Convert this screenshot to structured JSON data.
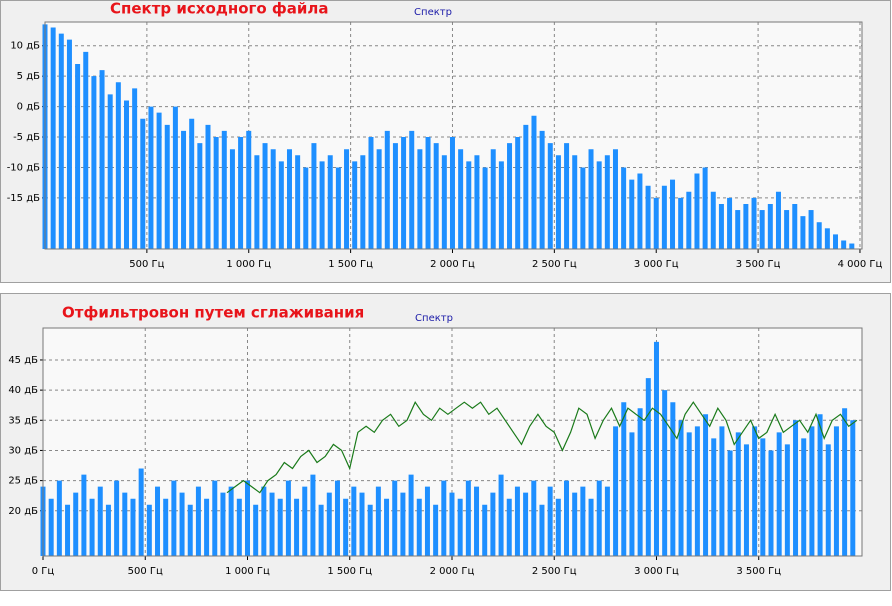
{
  "chart_data": [
    {
      "type": "bar",
      "title": "Спектр исходного файла",
      "grid": true,
      "xlim": [
        0,
        4010
      ],
      "ylim": [
        -23.4,
        13.9
      ],
      "xticks": [
        {
          "value": 500,
          "label": "500 Гц"
        },
        {
          "value": 1000,
          "label": "1 000 Гц"
        },
        {
          "value": 1500,
          "label": "1 500 Гц"
        },
        {
          "value": 2000,
          "label": "2 000 Гц"
        },
        {
          "value": 2500,
          "label": "2 500 Гц"
        },
        {
          "value": 3000,
          "label": "3 000 Гц"
        },
        {
          "value": 3500,
          "label": "3 500 Гц"
        },
        {
          "value": 4000,
          "label": "4 000 Гц"
        }
      ],
      "yticks": [
        {
          "value": 10,
          "label": "10 дБ"
        },
        {
          "value": 5,
          "label": "5 дБ"
        },
        {
          "value": 0,
          "label": "0 дБ"
        },
        {
          "value": -5,
          "label": "-5 дБ"
        },
        {
          "value": -10,
          "label": "-10 дБ"
        },
        {
          "value": -15,
          "label": "-15 дБ"
        }
      ],
      "series": [
        {
          "name": "Спектр",
          "color": "#1e8fff",
          "x": [
            0,
            40,
            80,
            120,
            160,
            200,
            240,
            280,
            320,
            360,
            400,
            440,
            480,
            520,
            560,
            600,
            640,
            680,
            720,
            760,
            800,
            840,
            880,
            920,
            960,
            1000,
            1040,
            1080,
            1120,
            1160,
            1200,
            1240,
            1280,
            1320,
            1360,
            1400,
            1440,
            1480,
            1520,
            1560,
            1600,
            1640,
            1680,
            1720,
            1760,
            1800,
            1840,
            1880,
            1920,
            1960,
            2000,
            2040,
            2080,
            2120,
            2160,
            2200,
            2240,
            2280,
            2320,
            2360,
            2400,
            2440,
            2480,
            2520,
            2560,
            2600,
            2640,
            2680,
            2720,
            2760,
            2800,
            2840,
            2880,
            2920,
            2960,
            3000,
            3040,
            3080,
            3120,
            3160,
            3200,
            3240,
            3280,
            3320,
            3360,
            3400,
            3440,
            3480,
            3520,
            3560,
            3600,
            3640,
            3680,
            3720,
            3760,
            3800,
            3840,
            3880,
            3920,
            3960
          ],
          "values": [
            13.5,
            13,
            12,
            11,
            7,
            9,
            5,
            6,
            2,
            4,
            1,
            3,
            -2,
            0,
            -1,
            -3,
            0,
            -4,
            -2,
            -6,
            -3,
            -5,
            -4,
            -7,
            -5,
            -4,
            -8,
            -6,
            -7,
            -9,
            -7,
            -8,
            -10,
            -6,
            -9,
            -8,
            -10,
            -7,
            -9,
            -8,
            -5,
            -7,
            -4,
            -6,
            -5,
            -4,
            -7,
            -5,
            -6,
            -8,
            -5,
            -7,
            -9,
            -8,
            -10,
            -7,
            -9,
            -6,
            -5,
            -3,
            -1.5,
            -4,
            -6,
            -8,
            -6,
            -8,
            -10,
            -7,
            -9,
            -8,
            -7,
            -10,
            -12,
            -11,
            -13,
            -15,
            -13,
            -12,
            -15,
            -14,
            -11,
            -10,
            -14,
            -16,
            -15,
            -17,
            -16,
            -15,
            -17,
            -16,
            -14,
            -17,
            -16,
            -18,
            -17,
            -19,
            -20,
            -21,
            -22,
            -22.5
          ]
        }
      ]
    },
    {
      "type": "bar",
      "title": "Отфильтровон путем сглаживания",
      "grid": true,
      "xlim": [
        0,
        4005
      ],
      "ylim": [
        12.5,
        50.3
      ],
      "xticks": [
        {
          "value": 0,
          "label": "0 Гц"
        },
        {
          "value": 500,
          "label": "500 Гц"
        },
        {
          "value": 1000,
          "label": "1 000 Гц"
        },
        {
          "value": 1500,
          "label": "1 500 Гц"
        },
        {
          "value": 2000,
          "label": "2 000 Гц"
        },
        {
          "value": 2500,
          "label": "2 500 Гц"
        },
        {
          "value": 3000,
          "label": "3 000 Гц"
        },
        {
          "value": 3500,
          "label": "3 500 Гц"
        }
      ],
      "yticks": [
        {
          "value": 45,
          "label": "45 дБ"
        },
        {
          "value": 40,
          "label": "40 дБ"
        },
        {
          "value": 35,
          "label": "35 дБ"
        },
        {
          "value": 30,
          "label": "30 дБ"
        },
        {
          "value": 25,
          "label": "25 дБ"
        },
        {
          "value": 20,
          "label": "20 дБ"
        }
      ],
      "series": [
        {
          "name": "Спектр",
          "color": "#1e8fff",
          "x": [
            0,
            40,
            80,
            120,
            160,
            200,
            240,
            280,
            320,
            360,
            400,
            440,
            480,
            520,
            560,
            600,
            640,
            680,
            720,
            760,
            800,
            840,
            880,
            920,
            960,
            1000,
            1040,
            1080,
            1120,
            1160,
            1200,
            1240,
            1280,
            1320,
            1360,
            1400,
            1440,
            1480,
            1520,
            1560,
            1600,
            1640,
            1680,
            1720,
            1760,
            1800,
            1840,
            1880,
            1920,
            1960,
            2000,
            2040,
            2080,
            2120,
            2160,
            2200,
            2240,
            2280,
            2320,
            2360,
            2400,
            2440,
            2480,
            2520,
            2560,
            2600,
            2640,
            2680,
            2720,
            2760,
            2800,
            2840,
            2880,
            2920,
            2960,
            3000,
            3040,
            3080,
            3120,
            3160,
            3200,
            3240,
            3280,
            3320,
            3360,
            3400,
            3440,
            3480,
            3520,
            3560,
            3600,
            3640,
            3680,
            3720,
            3760,
            3800,
            3840,
            3880,
            3920,
            3960
          ],
          "values": [
            24,
            22,
            25,
            21,
            23,
            26,
            22,
            24,
            21,
            25,
            23,
            22,
            27,
            21,
            24,
            22,
            25,
            23,
            21,
            24,
            22,
            25,
            23,
            24,
            22,
            25,
            21,
            24,
            23,
            22,
            25,
            22,
            24,
            26,
            21,
            23,
            25,
            22,
            24,
            23,
            21,
            24,
            22,
            25,
            23,
            26,
            22,
            24,
            21,
            25,
            23,
            22,
            25,
            24,
            21,
            23,
            26,
            22,
            24,
            23,
            25,
            21,
            24,
            22,
            25,
            23,
            24,
            22,
            25,
            24,
            34,
            38,
            33,
            37,
            42,
            48,
            40,
            38,
            35,
            33,
            34,
            36,
            32,
            34,
            30,
            33,
            31,
            34,
            32,
            30,
            33,
            31,
            35,
            32,
            34,
            36,
            31,
            34,
            37,
            35
          ]
        },
        {
          "type": "line",
          "color": "#1a7a1a",
          "x": [
            900,
            940,
            980,
            1020,
            1060,
            1100,
            1140,
            1180,
            1220,
            1260,
            1300,
            1340,
            1380,
            1420,
            1460,
            1500,
            1540,
            1580,
            1620,
            1660,
            1700,
            1740,
            1780,
            1820,
            1860,
            1900,
            1940,
            1980,
            2020,
            2060,
            2100,
            2140,
            2180,
            2220,
            2260,
            2300,
            2340,
            2380,
            2420,
            2460,
            2500,
            2540,
            2580,
            2620,
            2660,
            2700,
            2740,
            2780,
            2820,
            2860,
            2900,
            2940,
            2980,
            3020,
            3060,
            3100,
            3140,
            3180,
            3220,
            3260,
            3300,
            3340,
            3380,
            3420,
            3460,
            3500,
            3540,
            3580,
            3620,
            3660,
            3700,
            3740,
            3780,
            3820,
            3860,
            3900,
            3940,
            3980
          ],
          "values": [
            23,
            24,
            25,
            24,
            23,
            25,
            26,
            28,
            27,
            29,
            30,
            28,
            29,
            31,
            30,
            27,
            33,
            34,
            33,
            35,
            36,
            34,
            35,
            38,
            36,
            35,
            37,
            36,
            37,
            38,
            37,
            38,
            36,
            37,
            35,
            33,
            31,
            34,
            36,
            34,
            33,
            30,
            33,
            37,
            36,
            32,
            35,
            37,
            34,
            37,
            36,
            35,
            37,
            36,
            34,
            32,
            36,
            38,
            36,
            34,
            37,
            35,
            31,
            33,
            35,
            32,
            33,
            36,
            33,
            34,
            35,
            33,
            36,
            32,
            35,
            36,
            34,
            35
          ]
        }
      ]
    }
  ]
}
